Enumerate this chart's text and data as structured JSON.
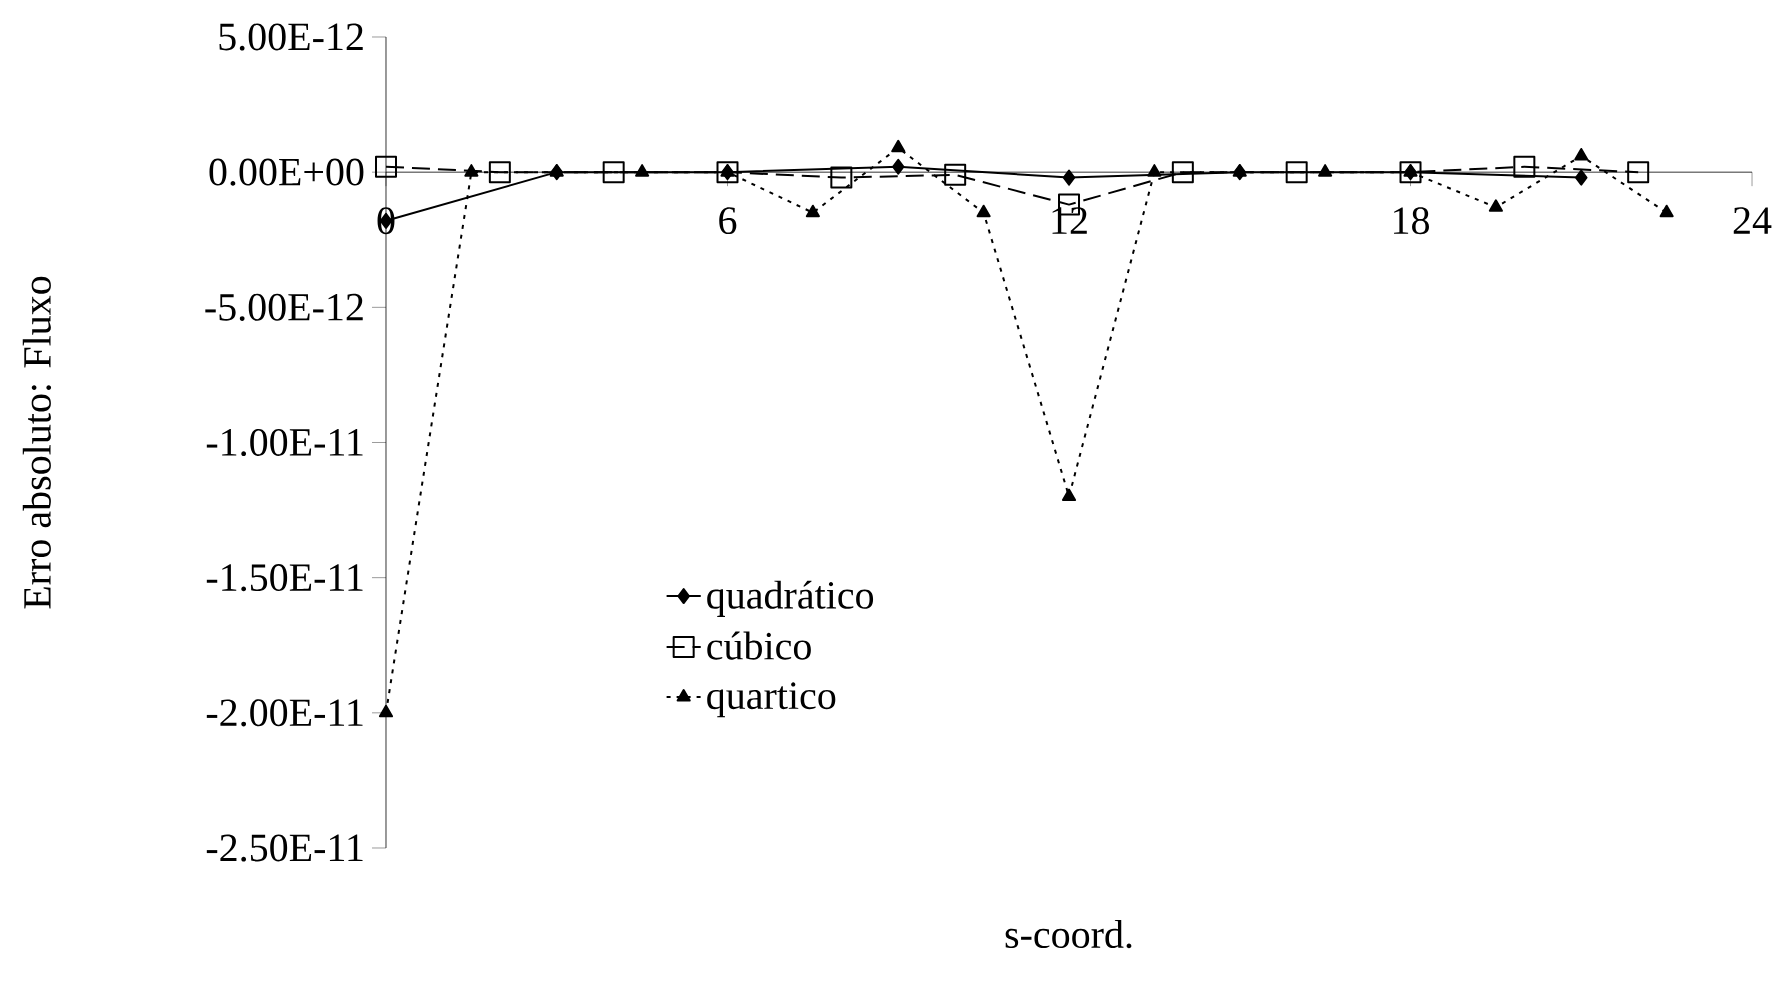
{
  "chart_data": {
    "type": "line",
    "xlabel": "s-coord.",
    "ylabel": "Erro absoluto: Fluxo",
    "xlim": [
      0,
      24
    ],
    "xticks": [
      0,
      6,
      12,
      18,
      24
    ],
    "ylim": [
      -2.5e-11,
      5e-12
    ],
    "yticks": [
      {
        "value": 5e-12,
        "label": "5.00E-12"
      },
      {
        "value": 0,
        "label": "0.00E+00"
      },
      {
        "value": -5e-12,
        "label": "-5.00E-12"
      },
      {
        "value": -1e-11,
        "label": "-1.00E-11"
      },
      {
        "value": -1.5e-11,
        "label": "-1.50E-11"
      },
      {
        "value": -2e-11,
        "label": "-2.00E-11"
      },
      {
        "value": -2.5e-11,
        "label": "-2.50E-11"
      }
    ],
    "grid": false,
    "legend": "bottom",
    "series": [
      {
        "name": "quadrático",
        "color": "#000000",
        "marker": "diamond",
        "line_style": "solid",
        "x": [
          0,
          3,
          6,
          9,
          12,
          15,
          18,
          21
        ],
        "values": [
          -1.8e-12,
          0,
          0,
          2e-13,
          -2e-13,
          0,
          0,
          -2e-13
        ]
      },
      {
        "name": "cúbico",
        "color": "#000000",
        "marker": "square",
        "line_style": "dashed",
        "x": [
          0,
          2,
          4,
          6,
          8,
          10,
          12,
          14,
          16,
          18,
          20,
          22
        ],
        "values": [
          2e-13,
          0,
          0,
          0,
          -2e-13,
          -1e-13,
          -1.2e-12,
          0,
          0,
          0,
          2e-13,
          0
        ]
      },
      {
        "name": "quartico",
        "color": "#000000",
        "marker": "triangle",
        "line_style": "dotted",
        "x": [
          0,
          1.5,
          3,
          4.5,
          6,
          7.5,
          9,
          10.5,
          12,
          13.5,
          15,
          16.5,
          18,
          19.5,
          21,
          22.5
        ],
        "values": [
          -2e-11,
          0,
          0,
          0,
          0,
          -1.5e-12,
          9e-13,
          -1.5e-12,
          -1.2e-11,
          0,
          0,
          0,
          0,
          -1.3e-12,
          6e-13,
          -1.5e-12
        ]
      }
    ]
  }
}
